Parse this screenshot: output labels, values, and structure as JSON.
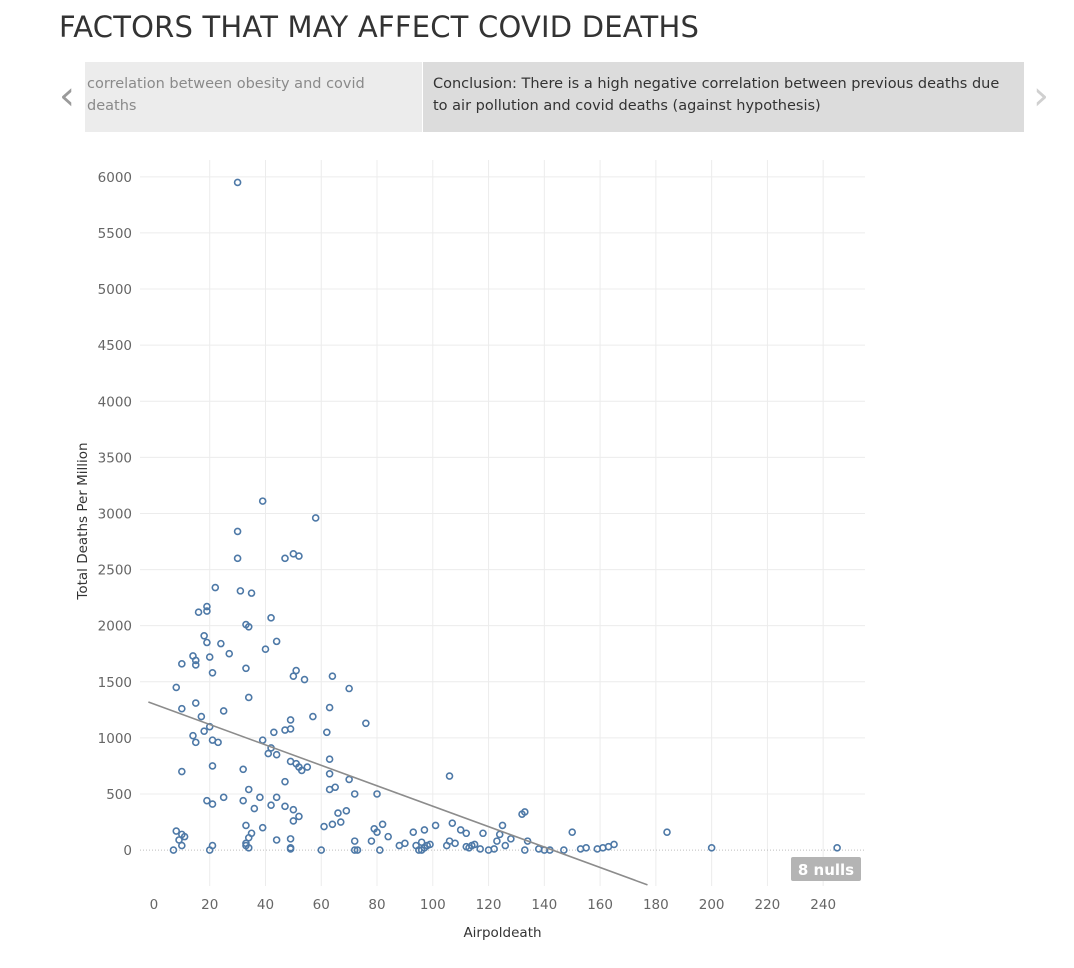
{
  "title": "FACTORS THAT MAY AFFECT COVID DEATHS",
  "story": {
    "prev_point": "correlation between obesity and covid deaths",
    "active_point": "Conclusion: There is a high negative correlation between previous deaths due to air pollution and covid deaths (against hypothesis)",
    "prev_arrow": "‹",
    "next_arrow": "›"
  },
  "colors": {
    "point": "#4e79a7",
    "trend": "#8c8c8c",
    "grid": "#ececec",
    "null_badge": "#b4b4b4"
  },
  "chart_data": {
    "type": "scatter",
    "xlabel": "Airpoldeath",
    "ylabel": "Total Deaths Per Million",
    "xlim": [
      -5,
      255
    ],
    "ylim": [
      -320,
      6150
    ],
    "x_ticks": [
      0,
      20,
      40,
      60,
      80,
      100,
      120,
      140,
      160,
      180,
      200,
      220,
      240
    ],
    "y_ticks": [
      0,
      500,
      1000,
      1500,
      2000,
      2500,
      3000,
      3500,
      4000,
      4500,
      5000,
      5500,
      6000
    ],
    "null_count_label": "8 nulls",
    "trend_line": {
      "x": [
        -2,
        177
      ],
      "y": [
        1320,
        -310
      ]
    },
    "points": [
      [
        30,
        5950
      ],
      [
        39,
        3110
      ],
      [
        58,
        2960
      ],
      [
        30,
        2840
      ],
      [
        50,
        2640
      ],
      [
        52,
        2620
      ],
      [
        47,
        2600
      ],
      [
        30,
        2600
      ],
      [
        22,
        2340
      ],
      [
        31,
        2310
      ],
      [
        35,
        2290
      ],
      [
        19,
        2170
      ],
      [
        19,
        2130
      ],
      [
        16,
        2120
      ],
      [
        42,
        2070
      ],
      [
        33,
        2010
      ],
      [
        34,
        1990
      ],
      [
        18,
        1910
      ],
      [
        19,
        1850
      ],
      [
        24,
        1840
      ],
      [
        44,
        1860
      ],
      [
        40,
        1790
      ],
      [
        20,
        1720
      ],
      [
        14,
        1730
      ],
      [
        15,
        1690
      ],
      [
        10,
        1660
      ],
      [
        15,
        1650
      ],
      [
        27,
        1750
      ],
      [
        33,
        1620
      ],
      [
        51,
        1600
      ],
      [
        64,
        1550
      ],
      [
        50,
        1550
      ],
      [
        54,
        1520
      ],
      [
        21,
        1580
      ],
      [
        8,
        1450
      ],
      [
        70,
        1440
      ],
      [
        34,
        1360
      ],
      [
        15,
        1310
      ],
      [
        10,
        1260
      ],
      [
        25,
        1240
      ],
      [
        63,
        1270
      ],
      [
        17,
        1190
      ],
      [
        57,
        1190
      ],
      [
        49,
        1160
      ],
      [
        76,
        1130
      ],
      [
        20,
        1100
      ],
      [
        18,
        1060
      ],
      [
        47,
        1070
      ],
      [
        49,
        1080
      ],
      [
        43,
        1050
      ],
      [
        62,
        1050
      ],
      [
        14,
        1020
      ],
      [
        15,
        960
      ],
      [
        21,
        980
      ],
      [
        23,
        960
      ],
      [
        39,
        980
      ],
      [
        42,
        910
      ],
      [
        44,
        850
      ],
      [
        41,
        860
      ],
      [
        63,
        810
      ],
      [
        49,
        790
      ],
      [
        51,
        770
      ],
      [
        52,
        740
      ],
      [
        53,
        710
      ],
      [
        55,
        740
      ],
      [
        21,
        750
      ],
      [
        10,
        700
      ],
      [
        32,
        720
      ],
      [
        63,
        680
      ],
      [
        70,
        630
      ],
      [
        106,
        660
      ],
      [
        47,
        610
      ],
      [
        65,
        560
      ],
      [
        63,
        540
      ],
      [
        34,
        540
      ],
      [
        25,
        470
      ],
      [
        44,
        470
      ],
      [
        38,
        470
      ],
      [
        72,
        500
      ],
      [
        80,
        500
      ],
      [
        19,
        440
      ],
      [
        21,
        410
      ],
      [
        32,
        440
      ],
      [
        42,
        400
      ],
      [
        47,
        390
      ],
      [
        50,
        360
      ],
      [
        36,
        370
      ],
      [
        66,
        330
      ],
      [
        52,
        300
      ],
      [
        50,
        260
      ],
      [
        69,
        350
      ],
      [
        67,
        250
      ],
      [
        61,
        210
      ],
      [
        64,
        230
      ],
      [
        79,
        190
      ],
      [
        80,
        160
      ],
      [
        82,
        230
      ],
      [
        84,
        120
      ],
      [
        132,
        320
      ],
      [
        133,
        340
      ],
      [
        125,
        220
      ],
      [
        107,
        240
      ],
      [
        101,
        220
      ],
      [
        97,
        180
      ],
      [
        93,
        160
      ],
      [
        110,
        180
      ],
      [
        112,
        150
      ],
      [
        118,
        150
      ],
      [
        124,
        140
      ],
      [
        126,
        40
      ],
      [
        150,
        160
      ],
      [
        184,
        160
      ],
      [
        39,
        200
      ],
      [
        33,
        220
      ],
      [
        35,
        150
      ],
      [
        34,
        110
      ],
      [
        44,
        90
      ],
      [
        49,
        100
      ],
      [
        8,
        170
      ],
      [
        10,
        140
      ],
      [
        11,
        120
      ],
      [
        9,
        90
      ],
      [
        10,
        40
      ],
      [
        7,
        0
      ],
      [
        21,
        40
      ],
      [
        20,
        0
      ],
      [
        33,
        40
      ],
      [
        33,
        60
      ],
      [
        34,
        20
      ],
      [
        49,
        20
      ],
      [
        49,
        10
      ],
      [
        60,
        0
      ],
      [
        72,
        80
      ],
      [
        72,
        0
      ],
      [
        73,
        0
      ],
      [
        78,
        80
      ],
      [
        81,
        0
      ],
      [
        88,
        40
      ],
      [
        90,
        60
      ],
      [
        94,
        40
      ],
      [
        95,
        0
      ],
      [
        96,
        70
      ],
      [
        97,
        20
      ],
      [
        98,
        40
      ],
      [
        99,
        50
      ],
      [
        105,
        40
      ],
      [
        106,
        80
      ],
      [
        108,
        60
      ],
      [
        113,
        20
      ],
      [
        114,
        40
      ],
      [
        115,
        50
      ],
      [
        120,
        0
      ],
      [
        122,
        10
      ],
      [
        123,
        80
      ],
      [
        128,
        100
      ],
      [
        134,
        80
      ],
      [
        133,
        0
      ],
      [
        138,
        10
      ],
      [
        140,
        0
      ],
      [
        142,
        0
      ],
      [
        147,
        0
      ],
      [
        153,
        10
      ],
      [
        155,
        20
      ],
      [
        159,
        10
      ],
      [
        161,
        20
      ],
      [
        163,
        30
      ],
      [
        165,
        50
      ],
      [
        200,
        20
      ],
      [
        245,
        20
      ],
      [
        96,
        0
      ],
      [
        112,
        30
      ],
      [
        117,
        10
      ]
    ]
  }
}
